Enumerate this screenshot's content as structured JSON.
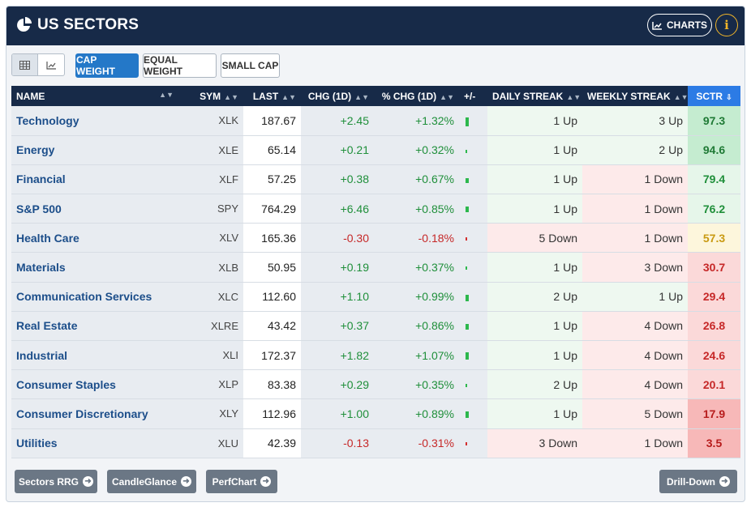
{
  "header": {
    "title": "US SECTORS",
    "charts_label": "CHARTS",
    "info_label": "i"
  },
  "toolbar": {
    "weight_buttons": [
      "CAP WEIGHT",
      "EQUAL WEIGHT",
      "SMALL CAP"
    ]
  },
  "columns": {
    "name": "NAME",
    "sym": "SYM",
    "last": "LAST",
    "chg": "CHG (1D)",
    "pct": "% CHG (1D)",
    "bar": "+/-",
    "daily": "DAILY STREAK",
    "weekly": "WEEKLY STREAK",
    "sctr": "SCTR"
  },
  "colors": {
    "header_bg": "#172a48",
    "accent_blue": "#2c7be5",
    "positive": "#1f8f3a",
    "negative": "#c62828"
  },
  "rows": [
    {
      "name": "Technology",
      "sym": "XLK",
      "last": "187.67",
      "chg": "+2.45",
      "pct": "+1.32%",
      "pct_value": 1.32,
      "daily": "1 Up",
      "weekly": "3 Up",
      "sctr": "97.3"
    },
    {
      "name": "Energy",
      "sym": "XLE",
      "last": "65.14",
      "chg": "+0.21",
      "pct": "+0.32%",
      "pct_value": 0.32,
      "daily": "1 Up",
      "weekly": "2 Up",
      "sctr": "94.6"
    },
    {
      "name": "Financial",
      "sym": "XLF",
      "last": "57.25",
      "chg": "+0.38",
      "pct": "+0.67%",
      "pct_value": 0.67,
      "daily": "1 Up",
      "weekly": "1 Down",
      "sctr": "79.4"
    },
    {
      "name": "S&P 500",
      "sym": "SPY",
      "last": "764.29",
      "chg": "+6.46",
      "pct": "+0.85%",
      "pct_value": 0.85,
      "daily": "1 Up",
      "weekly": "1 Down",
      "sctr": "76.2"
    },
    {
      "name": "Health Care",
      "sym": "XLV",
      "last": "165.36",
      "chg": "-0.30",
      "pct": "-0.18%",
      "pct_value": -0.18,
      "daily": "5 Down",
      "weekly": "1 Down",
      "sctr": "57.3"
    },
    {
      "name": "Materials",
      "sym": "XLB",
      "last": "50.95",
      "chg": "+0.19",
      "pct": "+0.37%",
      "pct_value": 0.37,
      "daily": "1 Up",
      "weekly": "3 Down",
      "sctr": "30.7"
    },
    {
      "name": "Communication Services",
      "sym": "XLC",
      "last": "112.60",
      "chg": "+1.10",
      "pct": "+0.99%",
      "pct_value": 0.99,
      "daily": "2 Up",
      "weekly": "1 Up",
      "sctr": "29.4"
    },
    {
      "name": "Real Estate",
      "sym": "XLRE",
      "last": "43.42",
      "chg": "+0.37",
      "pct": "+0.86%",
      "pct_value": 0.86,
      "daily": "1 Up",
      "weekly": "4 Down",
      "sctr": "26.8"
    },
    {
      "name": "Industrial",
      "sym": "XLI",
      "last": "172.37",
      "chg": "+1.82",
      "pct": "+1.07%",
      "pct_value": 1.07,
      "daily": "1 Up",
      "weekly": "4 Down",
      "sctr": "24.6"
    },
    {
      "name": "Consumer Staples",
      "sym": "XLP",
      "last": "83.38",
      "chg": "+0.29",
      "pct": "+0.35%",
      "pct_value": 0.35,
      "daily": "2 Up",
      "weekly": "4 Down",
      "sctr": "20.1"
    },
    {
      "name": "Consumer Discretionary",
      "sym": "XLY",
      "last": "112.96",
      "chg": "+1.00",
      "pct": "+0.89%",
      "pct_value": 0.89,
      "daily": "1 Up",
      "weekly": "5 Down",
      "sctr": "17.9"
    },
    {
      "name": "Utilities",
      "sym": "XLU",
      "last": "42.39",
      "chg": "-0.13",
      "pct": "-0.31%",
      "pct_value": -0.31,
      "daily": "3 Down",
      "weekly": "1 Down",
      "sctr": "3.5"
    }
  ],
  "footer": {
    "buttons": [
      "Sectors RRG",
      "CandleGlance",
      "PerfChart"
    ],
    "drill_down": "Drill-Down"
  }
}
